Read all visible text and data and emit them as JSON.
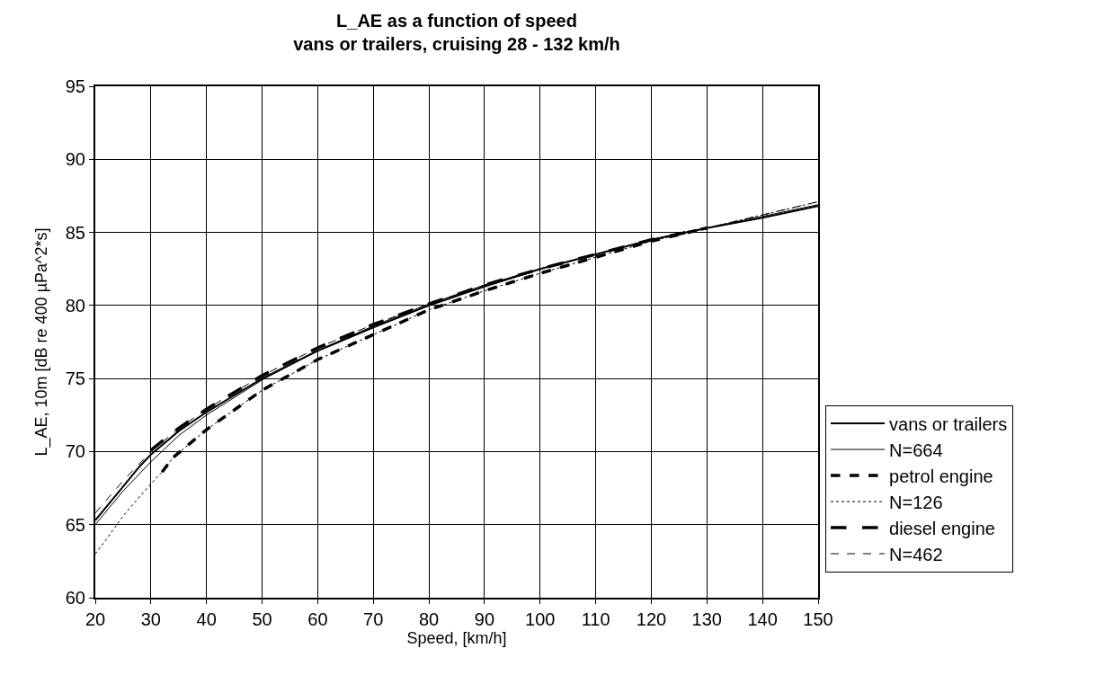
{
  "chart_data": {
    "type": "line",
    "title": "L_AE as a function of speed",
    "subtitle": "vans or trailers, cruising 28 - 132 km/h",
    "xlabel": "Speed, [km/h]",
    "ylabel": "L_AE, 10m [dB re 400 µPa^2*s]",
    "xlim": [
      20,
      150
    ],
    "xticks": [
      20,
      30,
      40,
      50,
      60,
      70,
      80,
      90,
      100,
      110,
      120,
      130,
      140,
      150
    ],
    "ylim": [
      60,
      95
    ],
    "yticks": [
      60,
      65,
      70,
      75,
      80,
      85,
      90,
      95
    ],
    "grid": true,
    "legend": "right",
    "marker": "none",
    "series": [
      {
        "name": "vans or trailers",
        "color": "#000000",
        "line_style": "solid",
        "x": [
          20,
          25,
          28,
          30,
          35,
          40,
          50,
          60,
          70,
          80,
          90,
          100,
          110,
          120,
          130,
          140,
          150
        ],
        "values": [
          65.3,
          67.6,
          69.0,
          69.8,
          71.4,
          72.7,
          75.0,
          76.9,
          78.5,
          80.0,
          81.3,
          82.5,
          83.5,
          84.5,
          85.3,
          86.0,
          86.8
        ]
      },
      {
        "name": "N=664",
        "color": "#000000",
        "line_style": "solid",
        "x": [
          20,
          25,
          30,
          35,
          40,
          50,
          60,
          70,
          80,
          90,
          100,
          110,
          120,
          130,
          140,
          150
        ],
        "values": [
          65.0,
          67.3,
          69.3,
          71.1,
          72.5,
          74.9,
          76.9,
          78.6,
          80.1,
          81.4,
          82.5,
          83.5,
          84.5,
          85.3,
          86.1,
          86.9
        ]
      },
      {
        "name": "petrol engine",
        "color": "#000000",
        "line_style": "dashed",
        "x": [
          32,
          34,
          40,
          50,
          60,
          70,
          80,
          90,
          100,
          110,
          120,
          130
        ],
        "values": [
          68.6,
          69.6,
          71.5,
          74.2,
          76.3,
          78.0,
          79.7,
          81.0,
          82.2,
          83.3,
          84.4,
          85.3
        ]
      },
      {
        "name": "N=126",
        "color": "#000000",
        "line_style": "dotted",
        "x": [
          20,
          22,
          25,
          30,
          32,
          34,
          40,
          50,
          60,
          70,
          80,
          90,
          100,
          110,
          120,
          130,
          140,
          150
        ],
        "values": [
          63.0,
          64.0,
          65.6,
          67.8,
          68.6,
          69.6,
          71.5,
          74.2,
          76.3,
          78.0,
          79.7,
          81.0,
          82.2,
          83.3,
          84.4,
          85.3,
          86.2,
          87.1
        ]
      },
      {
        "name": "diesel engine",
        "color": "#000000",
        "line_style": "dashed",
        "x": [
          30,
          35,
          40,
          50,
          60,
          70,
          80,
          90,
          100,
          110,
          120,
          130
        ],
        "values": [
          70.1,
          71.6,
          72.9,
          75.2,
          77.1,
          78.7,
          80.1,
          81.4,
          82.5,
          83.5,
          84.5,
          85.3
        ]
      },
      {
        "name": "N=462",
        "color": "#000000",
        "line_style": "dashed",
        "x": [
          20,
          25,
          30,
          35,
          40,
          50,
          60,
          70,
          80,
          90,
          100,
          110,
          120,
          130,
          140,
          150
        ],
        "values": [
          65.8,
          68.0,
          70.0,
          71.6,
          72.9,
          75.2,
          77.1,
          78.7,
          80.1,
          81.4,
          82.5,
          83.5,
          84.5,
          85.3,
          86.2,
          87.1
        ]
      }
    ]
  }
}
